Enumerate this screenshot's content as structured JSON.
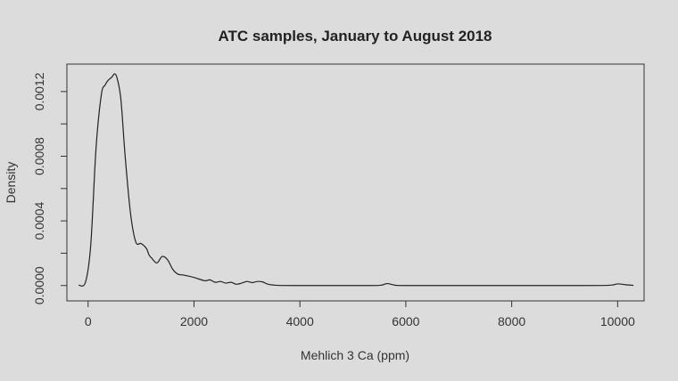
{
  "chart_data": {
    "type": "line",
    "title": "ATC samples, January to August 2018",
    "xlabel": "Mehlich 3 Ca (ppm)",
    "ylabel": "Density",
    "xlim": [
      -400,
      10500
    ],
    "ylim": [
      -9.5e-05,
      0.00137
    ],
    "x_ticks": [
      0,
      2000,
      4000,
      6000,
      8000,
      10000
    ],
    "x_tick_labels": [
      "0",
      "2000",
      "4000",
      "6000",
      "8000",
      "10000"
    ],
    "y_ticks": [
      0,
      0.0004,
      0.0008,
      0.0012
    ],
    "y_tick_labels": [
      "0.0000",
      "0.0004",
      "0.0008",
      "0.0012"
    ],
    "grid": false,
    "line_color": "#222222",
    "series": [
      {
        "x": [
          -180,
          -50,
          50,
          150,
          250,
          320,
          380,
          450,
          500,
          550,
          620,
          700,
          800,
          900,
          1000,
          1100,
          1150,
          1200,
          1300,
          1400,
          1500,
          1600,
          1700,
          1800,
          2000,
          2200,
          2300,
          2400,
          2500,
          2600,
          2700,
          2800,
          2900,
          3000,
          3100,
          3200,
          3300,
          3400,
          3600,
          4000,
          5000,
          5500,
          5650,
          5800,
          6000,
          7000,
          8000,
          9000,
          9800,
          10000,
          10150,
          10300
        ],
        "values": [
          2e-06,
          2e-05,
          0.00025,
          0.00085,
          0.00118,
          0.00124,
          0.00127,
          0.00129,
          0.00131,
          0.00128,
          0.00115,
          0.0008,
          0.00045,
          0.00027,
          0.00026,
          0.00023,
          0.00019,
          0.00017,
          0.00014,
          0.00018,
          0.00016,
          0.0001,
          7e-05,
          6.5e-05,
          5e-05,
          3e-05,
          3.5e-05,
          2e-05,
          2.5e-05,
          1.5e-05,
          2e-05,
          8e-06,
          1.5e-05,
          2.5e-05,
          1.8e-05,
          2.5e-05,
          2.2e-05,
          8e-06,
          1e-06,
          0.0,
          0.0,
          1e-06,
          1.2e-05,
          2e-06,
          0.0,
          0.0,
          0.0,
          0.0,
          1e-06,
          1e-05,
          5e-06,
          1e-06
        ]
      }
    ]
  }
}
